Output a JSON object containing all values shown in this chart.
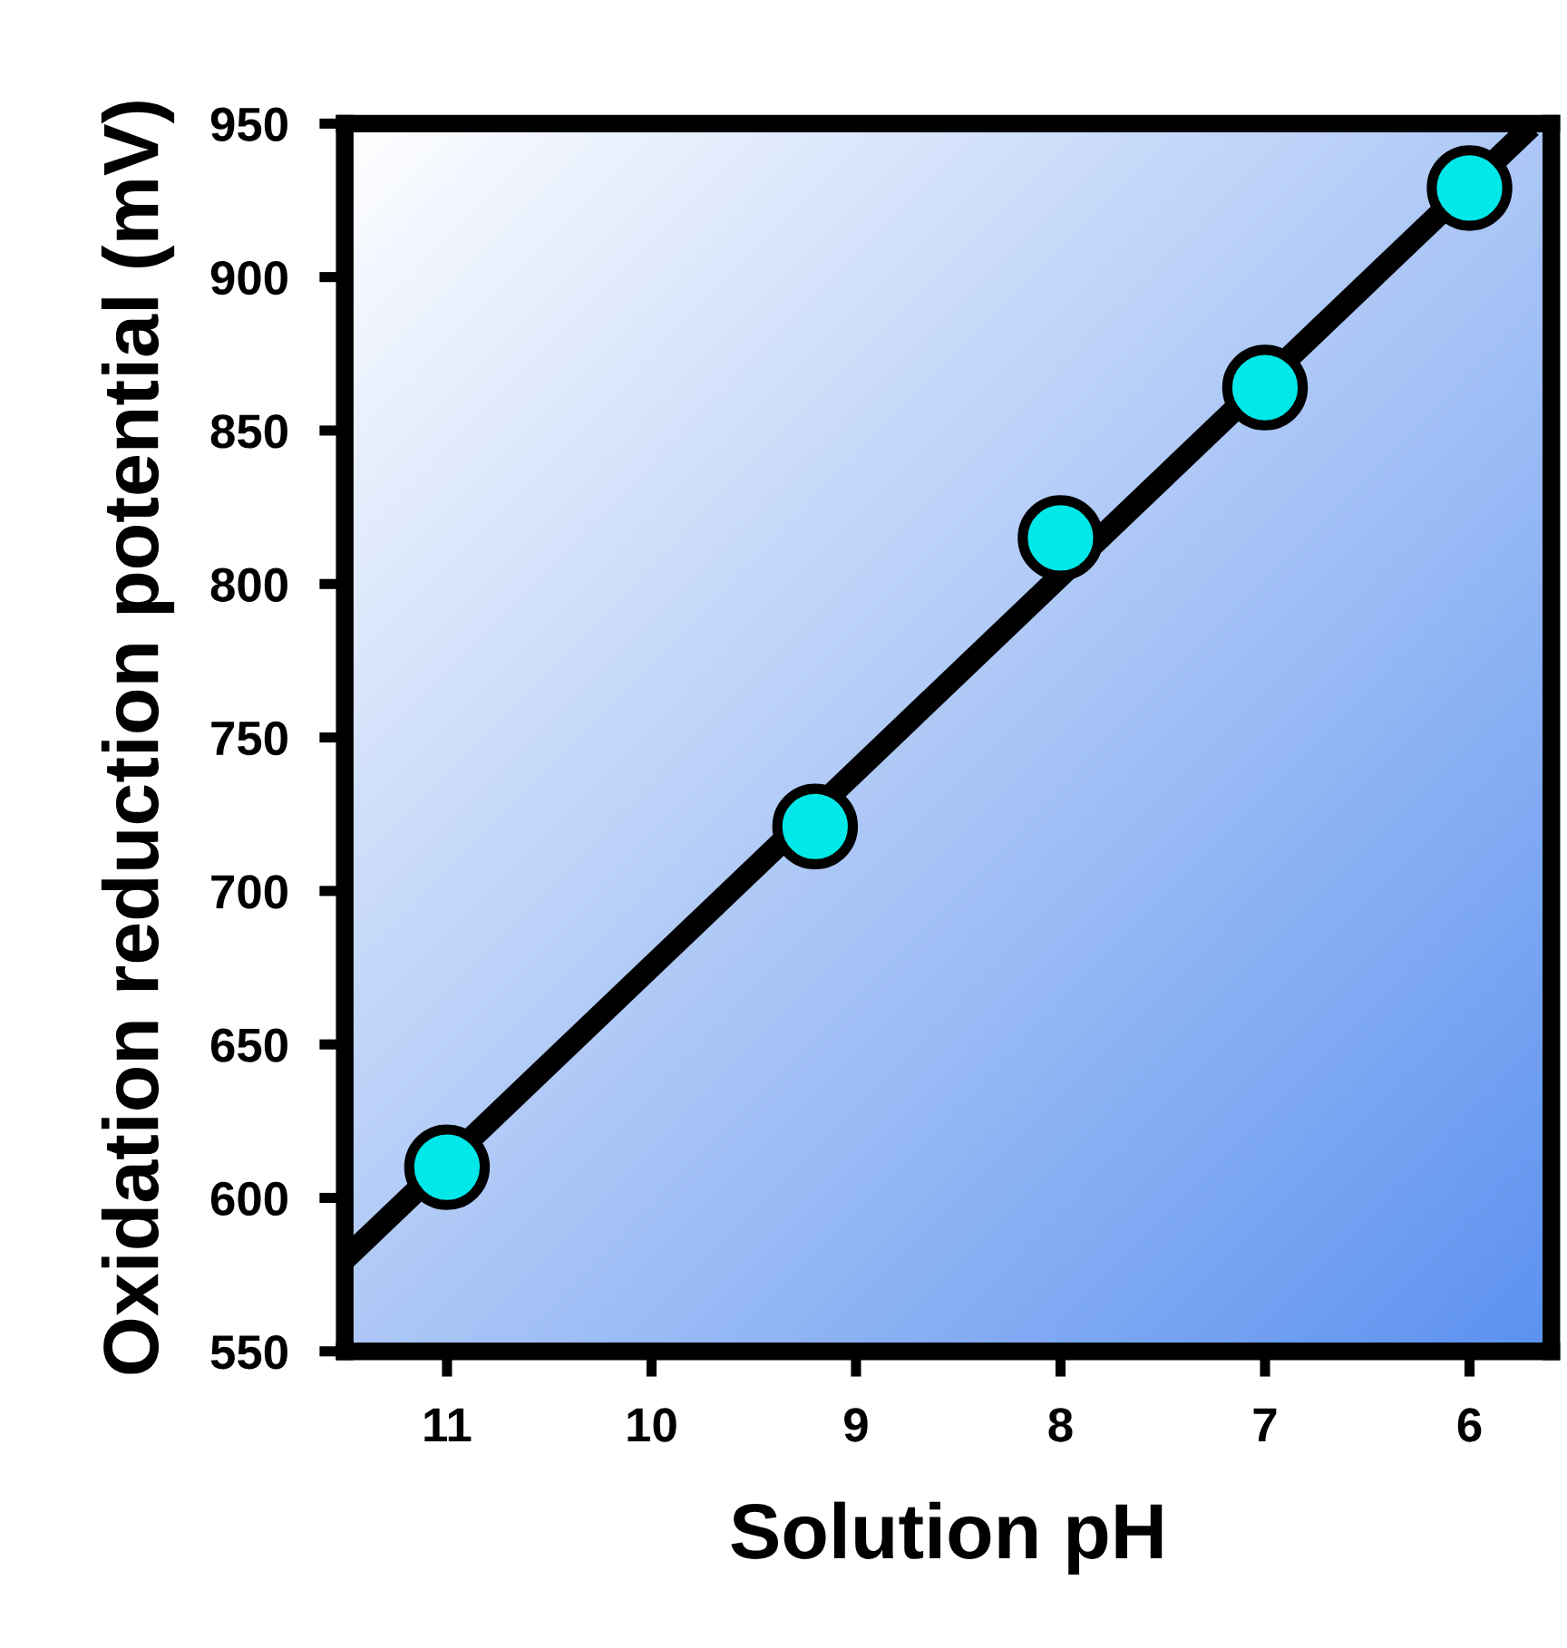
{
  "chart_data": {
    "type": "scatter",
    "xlabel": "Solution pH",
    "ylabel": "Oxidation reduction potential (mV)",
    "xlim": [
      11.5,
      5.6
    ],
    "ylim": [
      550,
      950
    ],
    "xticks": [
      11,
      10,
      9,
      8,
      7,
      6
    ],
    "yticks": [
      550,
      600,
      650,
      700,
      750,
      800,
      850,
      900,
      950
    ],
    "marker": "circle",
    "grid": false,
    "series": [
      {
        "type": "line",
        "color": "#000000",
        "x": [
          11.5,
          5.7
        ],
        "values": [
          580,
          949
        ],
        "marker": "none"
      },
      {
        "color": "#00e8e8",
        "x": [
          11,
          9.2,
          8,
          7,
          6
        ],
        "values": [
          610,
          721,
          815,
          864,
          929
        ]
      }
    ]
  }
}
